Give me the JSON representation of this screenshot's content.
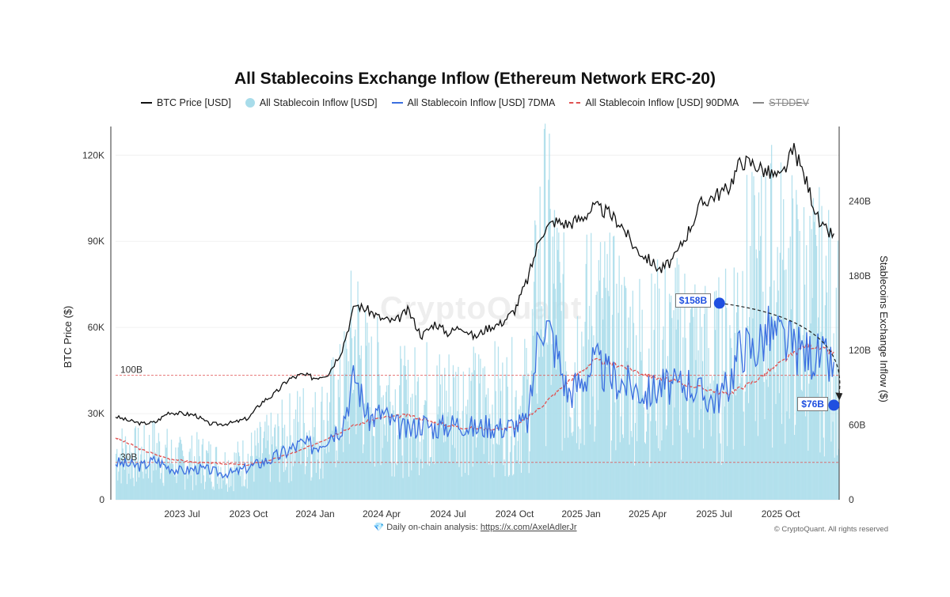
{
  "chart_data": {
    "type": "bar",
    "title": "All Stablecoins Exchange Inflow (Ethereum Network ERC-20)",
    "legend": [
      {
        "label": "BTC Price [USD]",
        "color": "#111111",
        "style": "line"
      },
      {
        "label": "All Stablecoin Inflow [USD]",
        "color": "#a8dcea",
        "style": "dot"
      },
      {
        "label": "All Stablecoin Inflow [USD] 7DMA",
        "color": "#3b6fe0",
        "style": "line"
      },
      {
        "label": "All Stablecoin Inflow [USD] 90DMA",
        "color": "#e05252",
        "style": "dash"
      },
      {
        "label": "STDDEV",
        "color": "#888888",
        "style": "line-strike"
      }
    ],
    "left_axis": {
      "label": "BTC Price ($)",
      "range": [
        0,
        130000
      ],
      "ticks": [
        0,
        30000,
        60000,
        90000,
        120000
      ],
      "tick_labels": [
        "0",
        "30K",
        "60K",
        "90K",
        "120K"
      ]
    },
    "right_axis": {
      "label": "Stablecoins Exchange Inflow ($)",
      "range": [
        0,
        300
      ],
      "ticks": [
        0,
        60,
        120,
        180,
        240
      ],
      "tick_labels": [
        "0",
        "60B",
        "120B",
        "180B",
        "240B"
      ]
    },
    "x_range": [
      2023.25,
      2025.97
    ],
    "x_ticks": [
      2023.5,
      2023.75,
      2024.0,
      2024.25,
      2024.5,
      2024.75,
      2025.0,
      2025.25,
      2025.5,
      2025.75
    ],
    "x_tick_labels": [
      "2023 Jul",
      "2023 Oct",
      "2024 Jan",
      "2024 Apr",
      "2024 Jul",
      "2024 Oct",
      "2025 Jan",
      "2025 Apr",
      "2025 Jul",
      "2025 Oct"
    ],
    "reference_lines": [
      {
        "label": "100B",
        "value": 100
      },
      {
        "label": "30B",
        "value": 30
      }
    ],
    "btc_price": {
      "x": [
        2023.25,
        2023.3,
        2023.35,
        2023.4,
        2023.45,
        2023.5,
        2023.55,
        2023.6,
        2023.65,
        2023.7,
        2023.75,
        2023.8,
        2023.85,
        2023.9,
        2023.95,
        2024.0,
        2024.05,
        2024.1,
        2024.15,
        2024.2,
        2024.25,
        2024.3,
        2024.35,
        2024.4,
        2024.45,
        2024.5,
        2024.55,
        2024.6,
        2024.65,
        2024.7,
        2024.75,
        2024.8,
        2024.85,
        2024.9,
        2024.95,
        2025.0,
        2025.05,
        2025.1,
        2025.15,
        2025.2,
        2025.25,
        2025.3,
        2025.35,
        2025.4,
        2025.45,
        2025.5,
        2025.55,
        2025.6,
        2025.65,
        2025.7,
        2025.75,
        2025.8,
        2025.85,
        2025.9,
        2025.95
      ],
      "y": [
        29000,
        27500,
        26500,
        27000,
        30500,
        30000,
        29500,
        26500,
        26300,
        27000,
        28500,
        34000,
        37000,
        42000,
        43500,
        42500,
        44000,
        52000,
        68000,
        66000,
        63000,
        62000,
        66000,
        57000,
        61500,
        58000,
        60500,
        56500,
        60000,
        61500,
        66000,
        77000,
        93000,
        97000,
        96000,
        98000,
        102000,
        100000,
        96000,
        88000,
        84000,
        80000,
        84000,
        93000,
        103000,
        106000,
        108000,
        118000,
        117000,
        114000,
        112000,
        122000,
        110000,
        95000,
        92000
      ]
    },
    "inflow_7dma": {
      "x": [
        2023.25,
        2023.3,
        2023.35,
        2023.4,
        2023.45,
        2023.5,
        2023.55,
        2023.6,
        2023.65,
        2023.7,
        2023.75,
        2023.8,
        2023.85,
        2023.9,
        2023.95,
        2024.0,
        2024.05,
        2024.1,
        2024.15,
        2024.2,
        2024.25,
        2024.3,
        2024.35,
        2024.4,
        2024.45,
        2024.5,
        2024.55,
        2024.6,
        2024.65,
        2024.7,
        2024.75,
        2024.8,
        2024.85,
        2024.9,
        2024.95,
        2025.0,
        2025.05,
        2025.1,
        2025.15,
        2025.2,
        2025.25,
        2025.3,
        2025.35,
        2025.4,
        2025.45,
        2025.5,
        2025.55,
        2025.6,
        2025.65,
        2025.7,
        2025.75,
        2025.8,
        2025.85,
        2025.9,
        2025.95
      ],
      "y": [
        30,
        28,
        27,
        32,
        26,
        23,
        25,
        24,
        21,
        22,
        26,
        30,
        34,
        40,
        45,
        43,
        52,
        60,
        100,
        65,
        70,
        60,
        55,
        62,
        58,
        60,
        62,
        57,
        60,
        58,
        60,
        62,
        150,
        125,
        85,
        95,
        110,
        100,
        95,
        90,
        85,
        92,
        90,
        95,
        85,
        80,
        90,
        125,
        120,
        135,
        130,
        122,
        118,
        115,
        105
      ]
    },
    "inflow_90dma": {
      "x": [
        2023.25,
        2023.35,
        2023.45,
        2023.55,
        2023.65,
        2023.75,
        2023.85,
        2023.95,
        2024.05,
        2024.15,
        2024.25,
        2024.35,
        2024.45,
        2024.55,
        2024.65,
        2024.75,
        2024.85,
        2024.95,
        2025.05,
        2025.15,
        2025.25,
        2025.35,
        2025.45,
        2025.55,
        2025.65,
        2025.75,
        2025.85,
        2025.95
      ],
      "y": [
        50,
        40,
        33,
        30,
        29,
        28,
        33,
        40,
        50,
        60,
        66,
        68,
        62,
        58,
        57,
        58,
        75,
        95,
        112,
        108,
        100,
        95,
        90,
        85,
        95,
        110,
        125,
        118
      ]
    },
    "annotations": [
      {
        "label": "$158B",
        "x": 2025.52,
        "y": 158
      },
      {
        "label": "$76B",
        "x": 2025.95,
        "y": 76
      }
    ]
  },
  "footer": {
    "analysis_prefix": "Daily on-chain analysis:",
    "analysis_link": "https://x.com/AxelAdlerJr",
    "rights": "© CryptoQuant. All rights reserved",
    "watermark": "CryptoQuant"
  }
}
